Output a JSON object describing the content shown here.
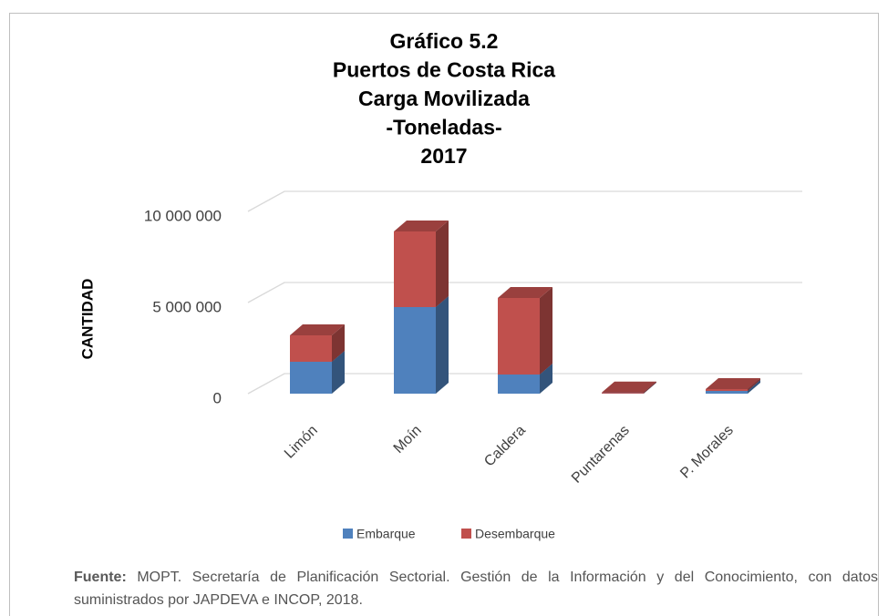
{
  "chart_data": {
    "type": "bar3d-stacked",
    "title": [
      "Gráfico 5.2",
      "Puertos de Costa Rica",
      "Carga Movilizada",
      "-Toneladas-",
      "2017"
    ],
    "ylabel": "CANTIDAD",
    "categories": [
      "Limón",
      "Moín",
      "Caldera",
      "Puntarenas",
      "P. Morales"
    ],
    "series": [
      {
        "name": "Embarque",
        "color": "#4f81bd",
        "values": [
          1750000,
          4750000,
          1050000,
          10000,
          150000
        ]
      },
      {
        "name": "Desembarque",
        "color": "#c0504d",
        "values": [
          1450000,
          4150000,
          4200000,
          50000,
          100000
        ]
      }
    ],
    "ylim": [
      0,
      10000000
    ],
    "yticks": [
      0,
      {
        "value": 5000000,
        "label": "5 000 000"
      },
      {
        "value": 10000000,
        "label": "10 000 000"
      }
    ],
    "grid": true,
    "legend": "bottom"
  },
  "footer": {
    "label": "Fuente:",
    "text": "MOPT. Secretaría de Planificación Sectorial. Gestión de la Información y del Conocimiento, con datos suministrados por JAPDEVA e INCOP, 2018."
  }
}
